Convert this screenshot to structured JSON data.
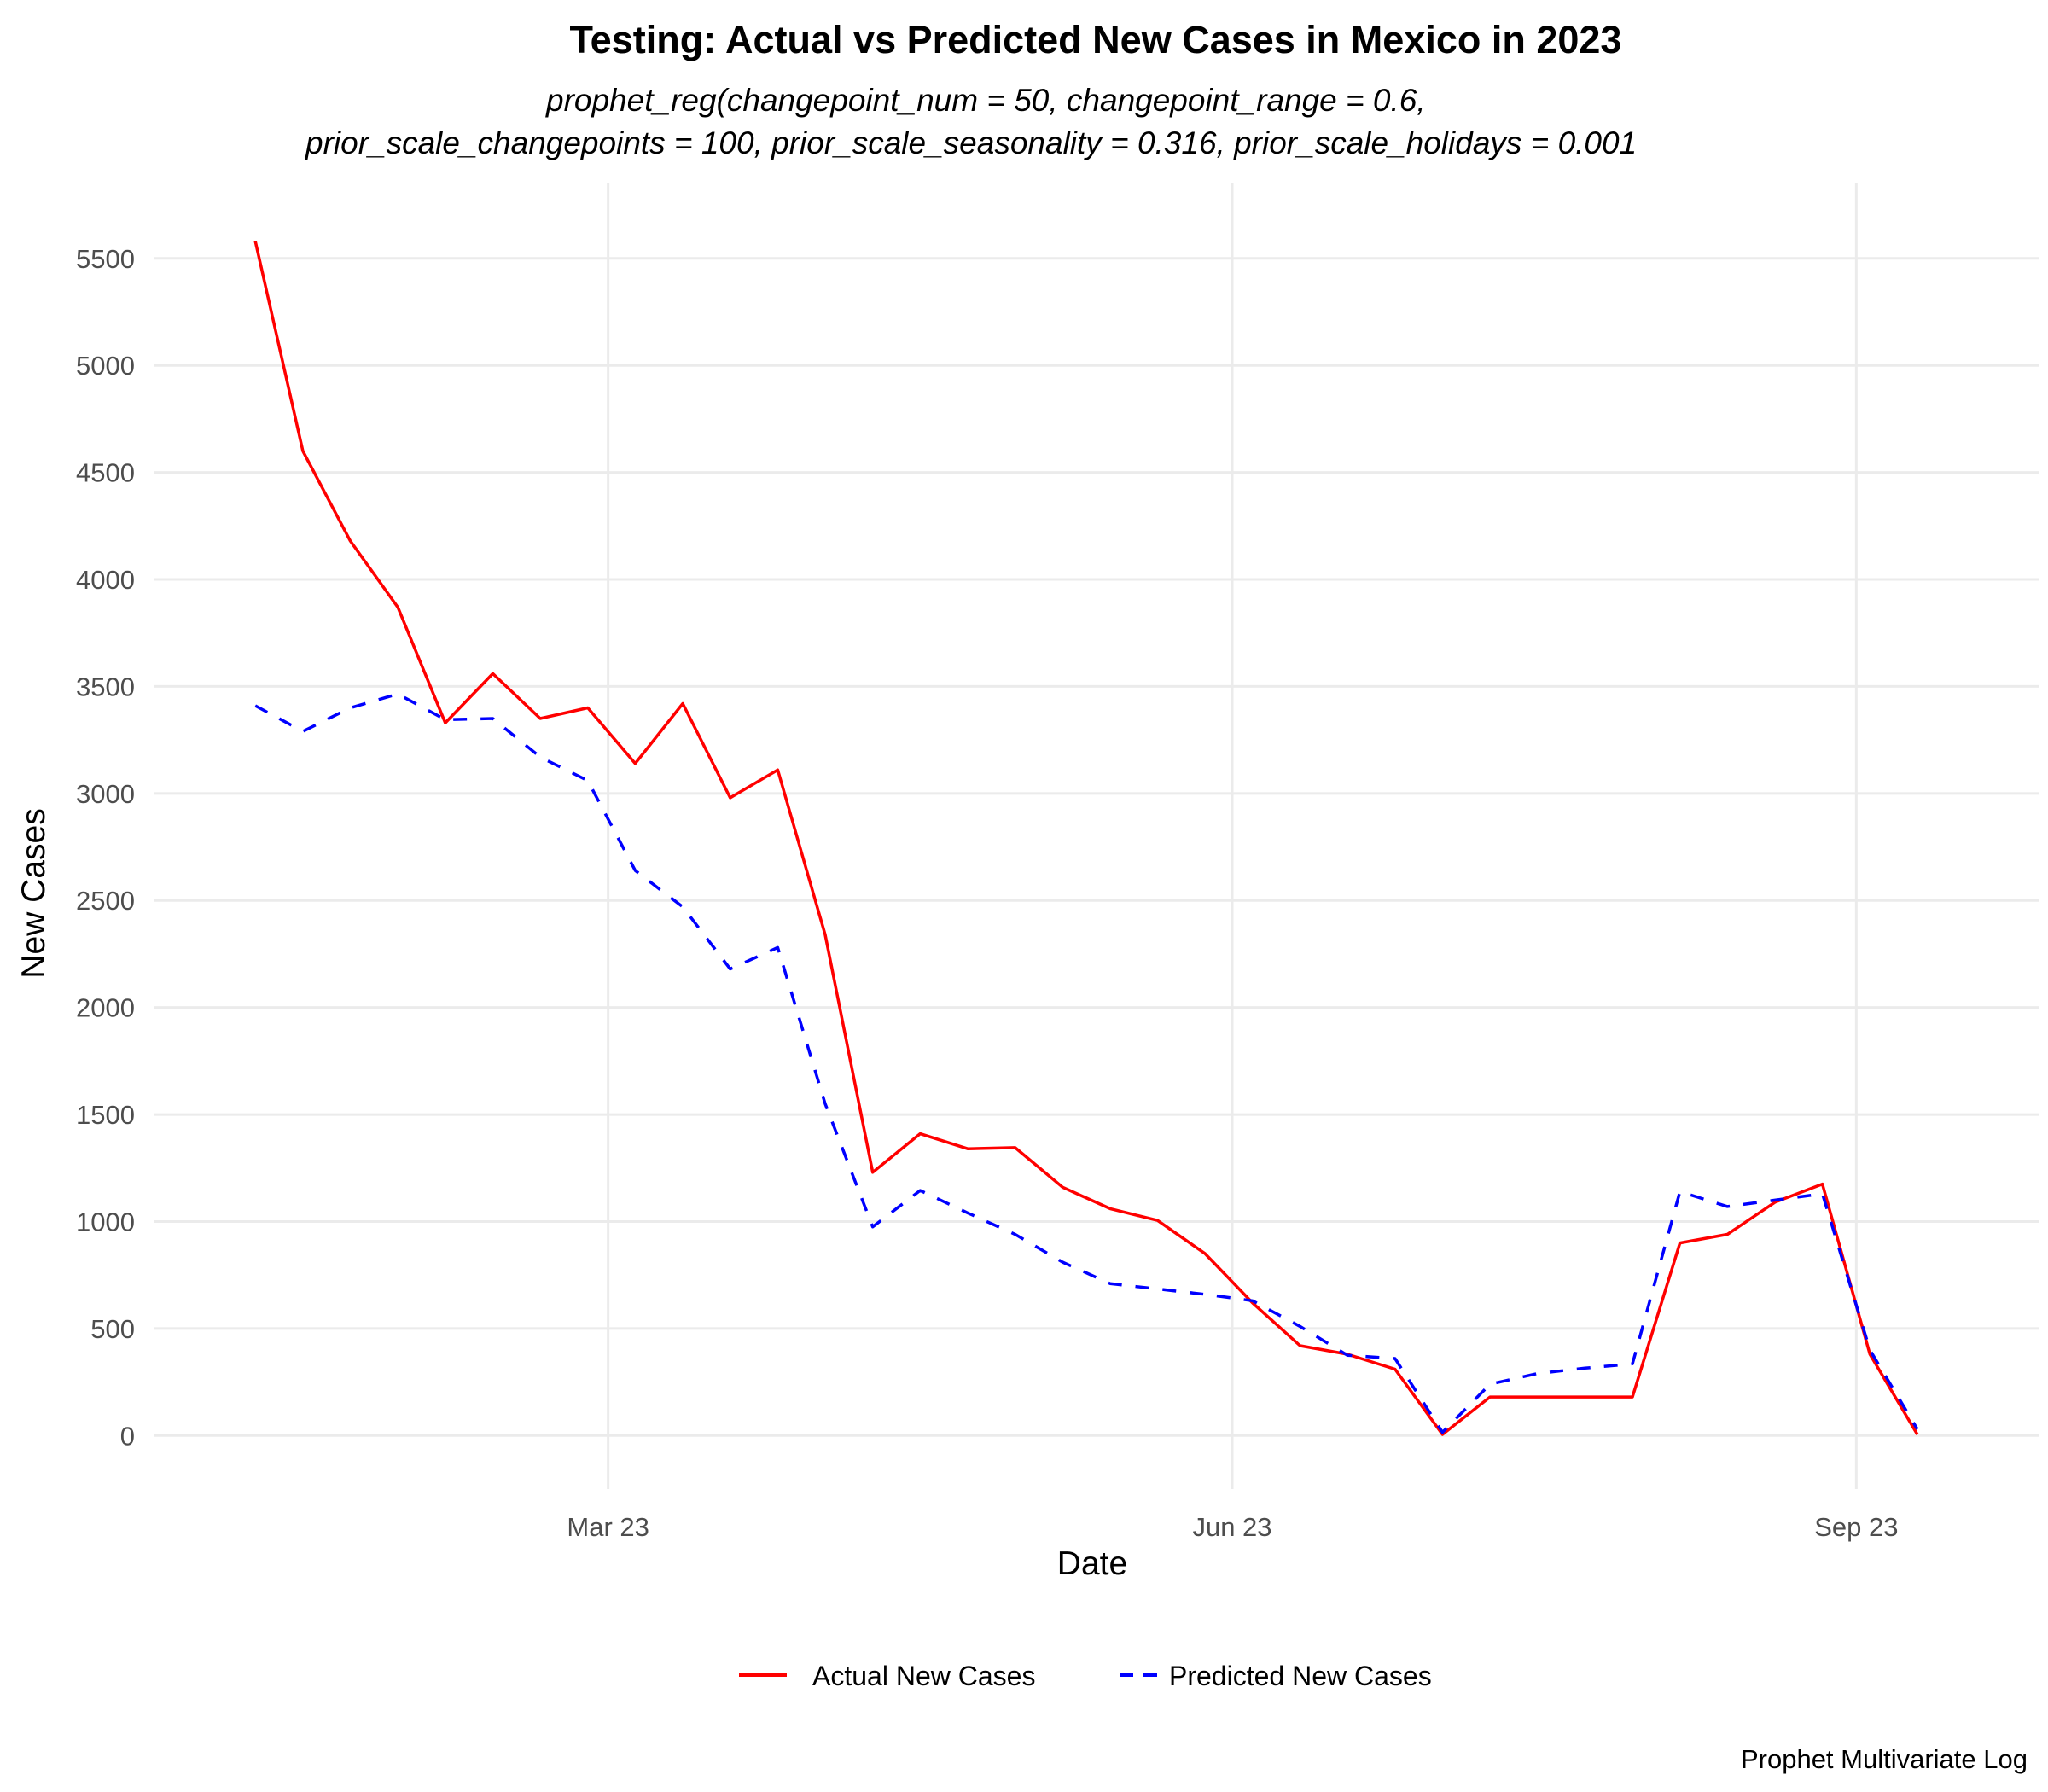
{
  "chart_data": {
    "type": "line",
    "title": "Testing: Actual vs Predicted New Cases in Mexico in 2023",
    "subtitle_lines": [
      "prophet_reg(changepoint_num = 50, changepoint_range = 0.6,",
      "prior_scale_changepoints = 100, prior_scale_seasonality = 0.316, prior_scale_holidays = 0.001"
    ],
    "xlabel": "Date",
    "ylabel": "New Cases",
    "caption": "Prophet Multivariate Log",
    "x_ticks": [
      {
        "date": "2023-03-01",
        "label": "Mar 23"
      },
      {
        "date": "2023-06-01",
        "label": "Jun 23"
      },
      {
        "date": "2023-09-01",
        "label": "Sep 23"
      }
    ],
    "y_ticks": [
      0,
      500,
      1000,
      1500,
      2000,
      2500,
      3000,
      3500,
      4000,
      4500,
      5000,
      5500
    ],
    "xlim": [
      "2022-12-24",
      "2023-09-28"
    ],
    "ylim": [
      -250,
      5850
    ],
    "legend_position": "bottom",
    "x": [
      "2023-01-08",
      "2023-01-15",
      "2023-01-22",
      "2023-01-29",
      "2023-02-05",
      "2023-02-12",
      "2023-02-19",
      "2023-02-26",
      "2023-03-05",
      "2023-03-12",
      "2023-03-19",
      "2023-03-26",
      "2023-04-02",
      "2023-04-09",
      "2023-04-16",
      "2023-04-23",
      "2023-04-30",
      "2023-05-07",
      "2023-05-14",
      "2023-05-21",
      "2023-05-28",
      "2023-06-04",
      "2023-06-11",
      "2023-06-18",
      "2023-06-25",
      "2023-07-02",
      "2023-07-09",
      "2023-07-16",
      "2023-07-23",
      "2023-07-30",
      "2023-08-06",
      "2023-08-13",
      "2023-08-20",
      "2023-08-27",
      "2023-09-03",
      "2023-09-10"
    ],
    "series": [
      {
        "name": "Actual New Cases",
        "color": "#ff0000",
        "dash": "solid",
        "values": [
          5580,
          4600,
          4180,
          3870,
          3330,
          3560,
          3350,
          3400,
          3140,
          3420,
          2980,
          3110,
          2340,
          1230,
          1410,
          1340,
          1345,
          1160,
          1060,
          1005,
          850,
          620,
          420,
          380,
          310,
          5,
          180,
          180,
          180,
          180,
          900,
          940,
          1090,
          1175,
          380,
          5
        ]
      },
      {
        "name": "Predicted New Cases",
        "color": "#0000ff",
        "dash": "dashed",
        "values": [
          3410,
          3290,
          3400,
          3465,
          3345,
          3350,
          3170,
          3060,
          2640,
          2470,
          2180,
          2280,
          1550,
          975,
          1145,
          1040,
          940,
          810,
          710,
          685,
          660,
          630,
          510,
          375,
          360,
          15,
          240,
          290,
          315,
          335,
          1140,
          1070,
          1100,
          1130,
          400,
          30
        ]
      }
    ]
  }
}
